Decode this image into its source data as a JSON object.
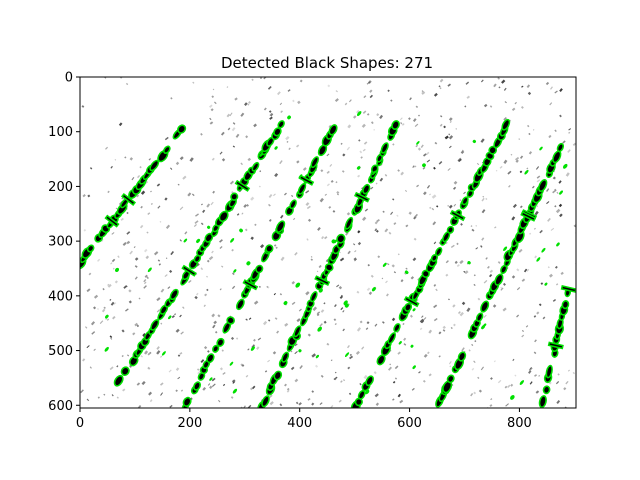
{
  "chart_data": {
    "type": "image",
    "title": "Detected Black Shapes: 271",
    "xlabel": "",
    "ylabel": "",
    "xlim": [
      0,
      903
    ],
    "ylim": [
      605,
      0
    ],
    "x_ticks": [
      0,
      200,
      400,
      600,
      800
    ],
    "y_ticks": [
      0,
      100,
      200,
      300,
      400,
      500,
      600
    ],
    "detected_count": 271,
    "colors": {
      "contour": "#00e000",
      "shape": "#000000",
      "background": "#ffffff"
    },
    "grid": false,
    "legend": "none",
    "stripes_approx_center_line_points": [
      [
        [
          0,
          340
        ],
        [
          190,
          90
        ]
      ],
      [
        [
          70,
          560
        ],
        [
          370,
          80
        ]
      ],
      [
        [
          190,
          605
        ],
        [
          470,
          80
        ]
      ],
      [
        [
          330,
          605
        ],
        [
          580,
          80
        ]
      ],
      [
        [
          500,
          605
        ],
        [
          780,
          80
        ]
      ],
      [
        [
          650,
          605
        ],
        [
          880,
          120
        ]
      ],
      [
        [
          840,
          605
        ],
        [
          903,
          330
        ]
      ]
    ]
  }
}
